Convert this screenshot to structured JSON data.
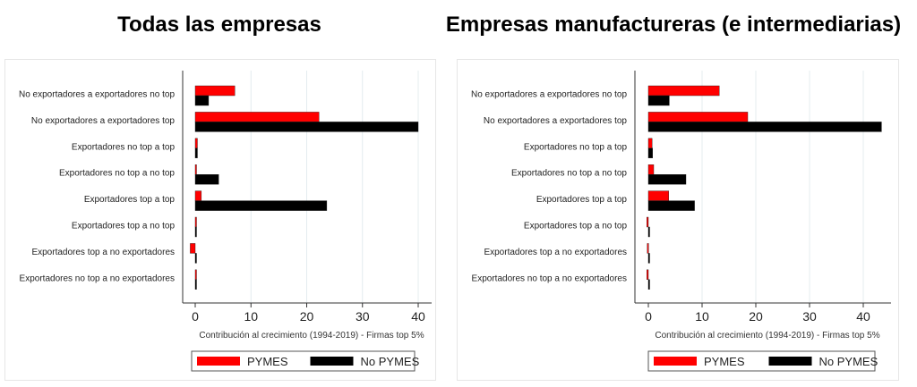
{
  "chart_data": [
    {
      "type": "bar",
      "orientation": "horizontal",
      "title": "Todas las empresas",
      "xlabel": "Contribución al crecimiento (1994-2019) - Firmas top 5%",
      "categories": [
        "No exportadores a exportadores no top",
        "No exportadores a exportadores top",
        "Exportadores no top a top",
        "Exportadores no top a no top",
        "Exportadores top a top",
        "Exportadores top a no top",
        "Exportadores top a no exportadores",
        "Exportadores no top a no exportadores"
      ],
      "series": [
        {
          "name": "PYMES",
          "color": "#ff0000",
          "values": [
            7.1,
            22.2,
            0.4,
            0.2,
            1.1,
            0.1,
            -0.9,
            0.1
          ]
        },
        {
          "name": "No PYMES",
          "color": "#000000",
          "values": [
            2.4,
            40.0,
            0.4,
            4.2,
            23.6,
            0.1,
            0.1,
            0.2
          ]
        }
      ],
      "xticks": [
        0,
        10,
        20,
        30,
        40
      ],
      "xlim": [
        -2.3,
        41.5
      ],
      "grid": true,
      "legend": "bottom"
    },
    {
      "type": "bar",
      "orientation": "horizontal",
      "title": "Empresas manufactureras (e intermediarias)",
      "xlabel": "Contribución al crecimiento (1994-2019) - Firmas top 5%",
      "categories": [
        "No exportadores a exportadores no top",
        "No exportadores a exportadores top",
        "Exportadores no top a top",
        "Exportadores no top a no top",
        "Exportadores top a top",
        "Exportadores top a no top",
        "Exportadores top a no exportadores",
        "Exportadores no top a no exportadores"
      ],
      "series": [
        {
          "name": "PYMES",
          "color": "#ff0000",
          "values": [
            13.2,
            18.5,
            0.7,
            1.0,
            3.8,
            -0.3,
            -0.2,
            -0.3
          ]
        },
        {
          "name": "No PYMES",
          "color": "#000000",
          "values": [
            3.9,
            43.4,
            0.8,
            7.0,
            8.6,
            0.1,
            0.1,
            0.1
          ]
        }
      ],
      "xticks": [
        0,
        10,
        20,
        30,
        40
      ],
      "xlim": [
        -2.5,
        45.3
      ],
      "grid": true,
      "legend": "bottom"
    }
  ]
}
